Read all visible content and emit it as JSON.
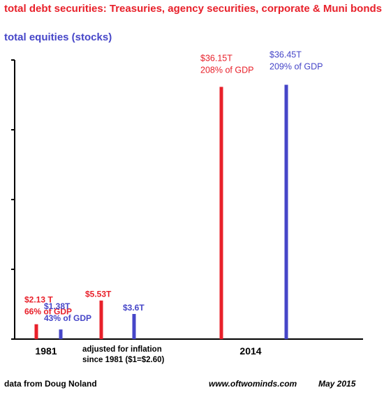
{
  "legend": {
    "debt": "total debt securities: Treasuries, agency securities, corporate & Muni bonds",
    "equity": "total equities (stocks)"
  },
  "colors": {
    "debt": "#e8202a",
    "equity": "#4646c8",
    "axis": "#000000"
  },
  "footer": {
    "source": "data from Doug Noland",
    "site": "www.oftwominds.com",
    "date": "May 2015"
  },
  "chart_data": {
    "type": "bar",
    "categories": [
      "1981",
      "adjusted for inflation since 1981 ($1=$2.60)",
      "2014"
    ],
    "category_lines": [
      [
        "1981"
      ],
      [
        "adjusted for inflation",
        "since 1981 ($1=$2.60)"
      ],
      [
        "2014"
      ]
    ],
    "series": [
      {
        "name": "total debt securities: Treasuries, agency securities, corporate & Muni bonds",
        "values": [
          2.13,
          5.53,
          36.15
        ],
        "labels": [
          [
            "$2.13 T",
            "66% of GDP"
          ],
          [
            "$5.53T"
          ],
          [
            "$36.15T",
            "208% of GDP"
          ]
        ]
      },
      {
        "name": "total equities (stocks)",
        "values": [
          1.38,
          3.6,
          36.45
        ],
        "labels": [
          [
            "$1.38T",
            "43% of GDP"
          ],
          [
            "$3.6T"
          ],
          [
            "$36.45T",
            "209% of GDP"
          ]
        ]
      }
    ],
    "ylim": [
      0,
      40
    ],
    "y_ticks": [
      0,
      10,
      20,
      30,
      40
    ],
    "grid": false
  }
}
